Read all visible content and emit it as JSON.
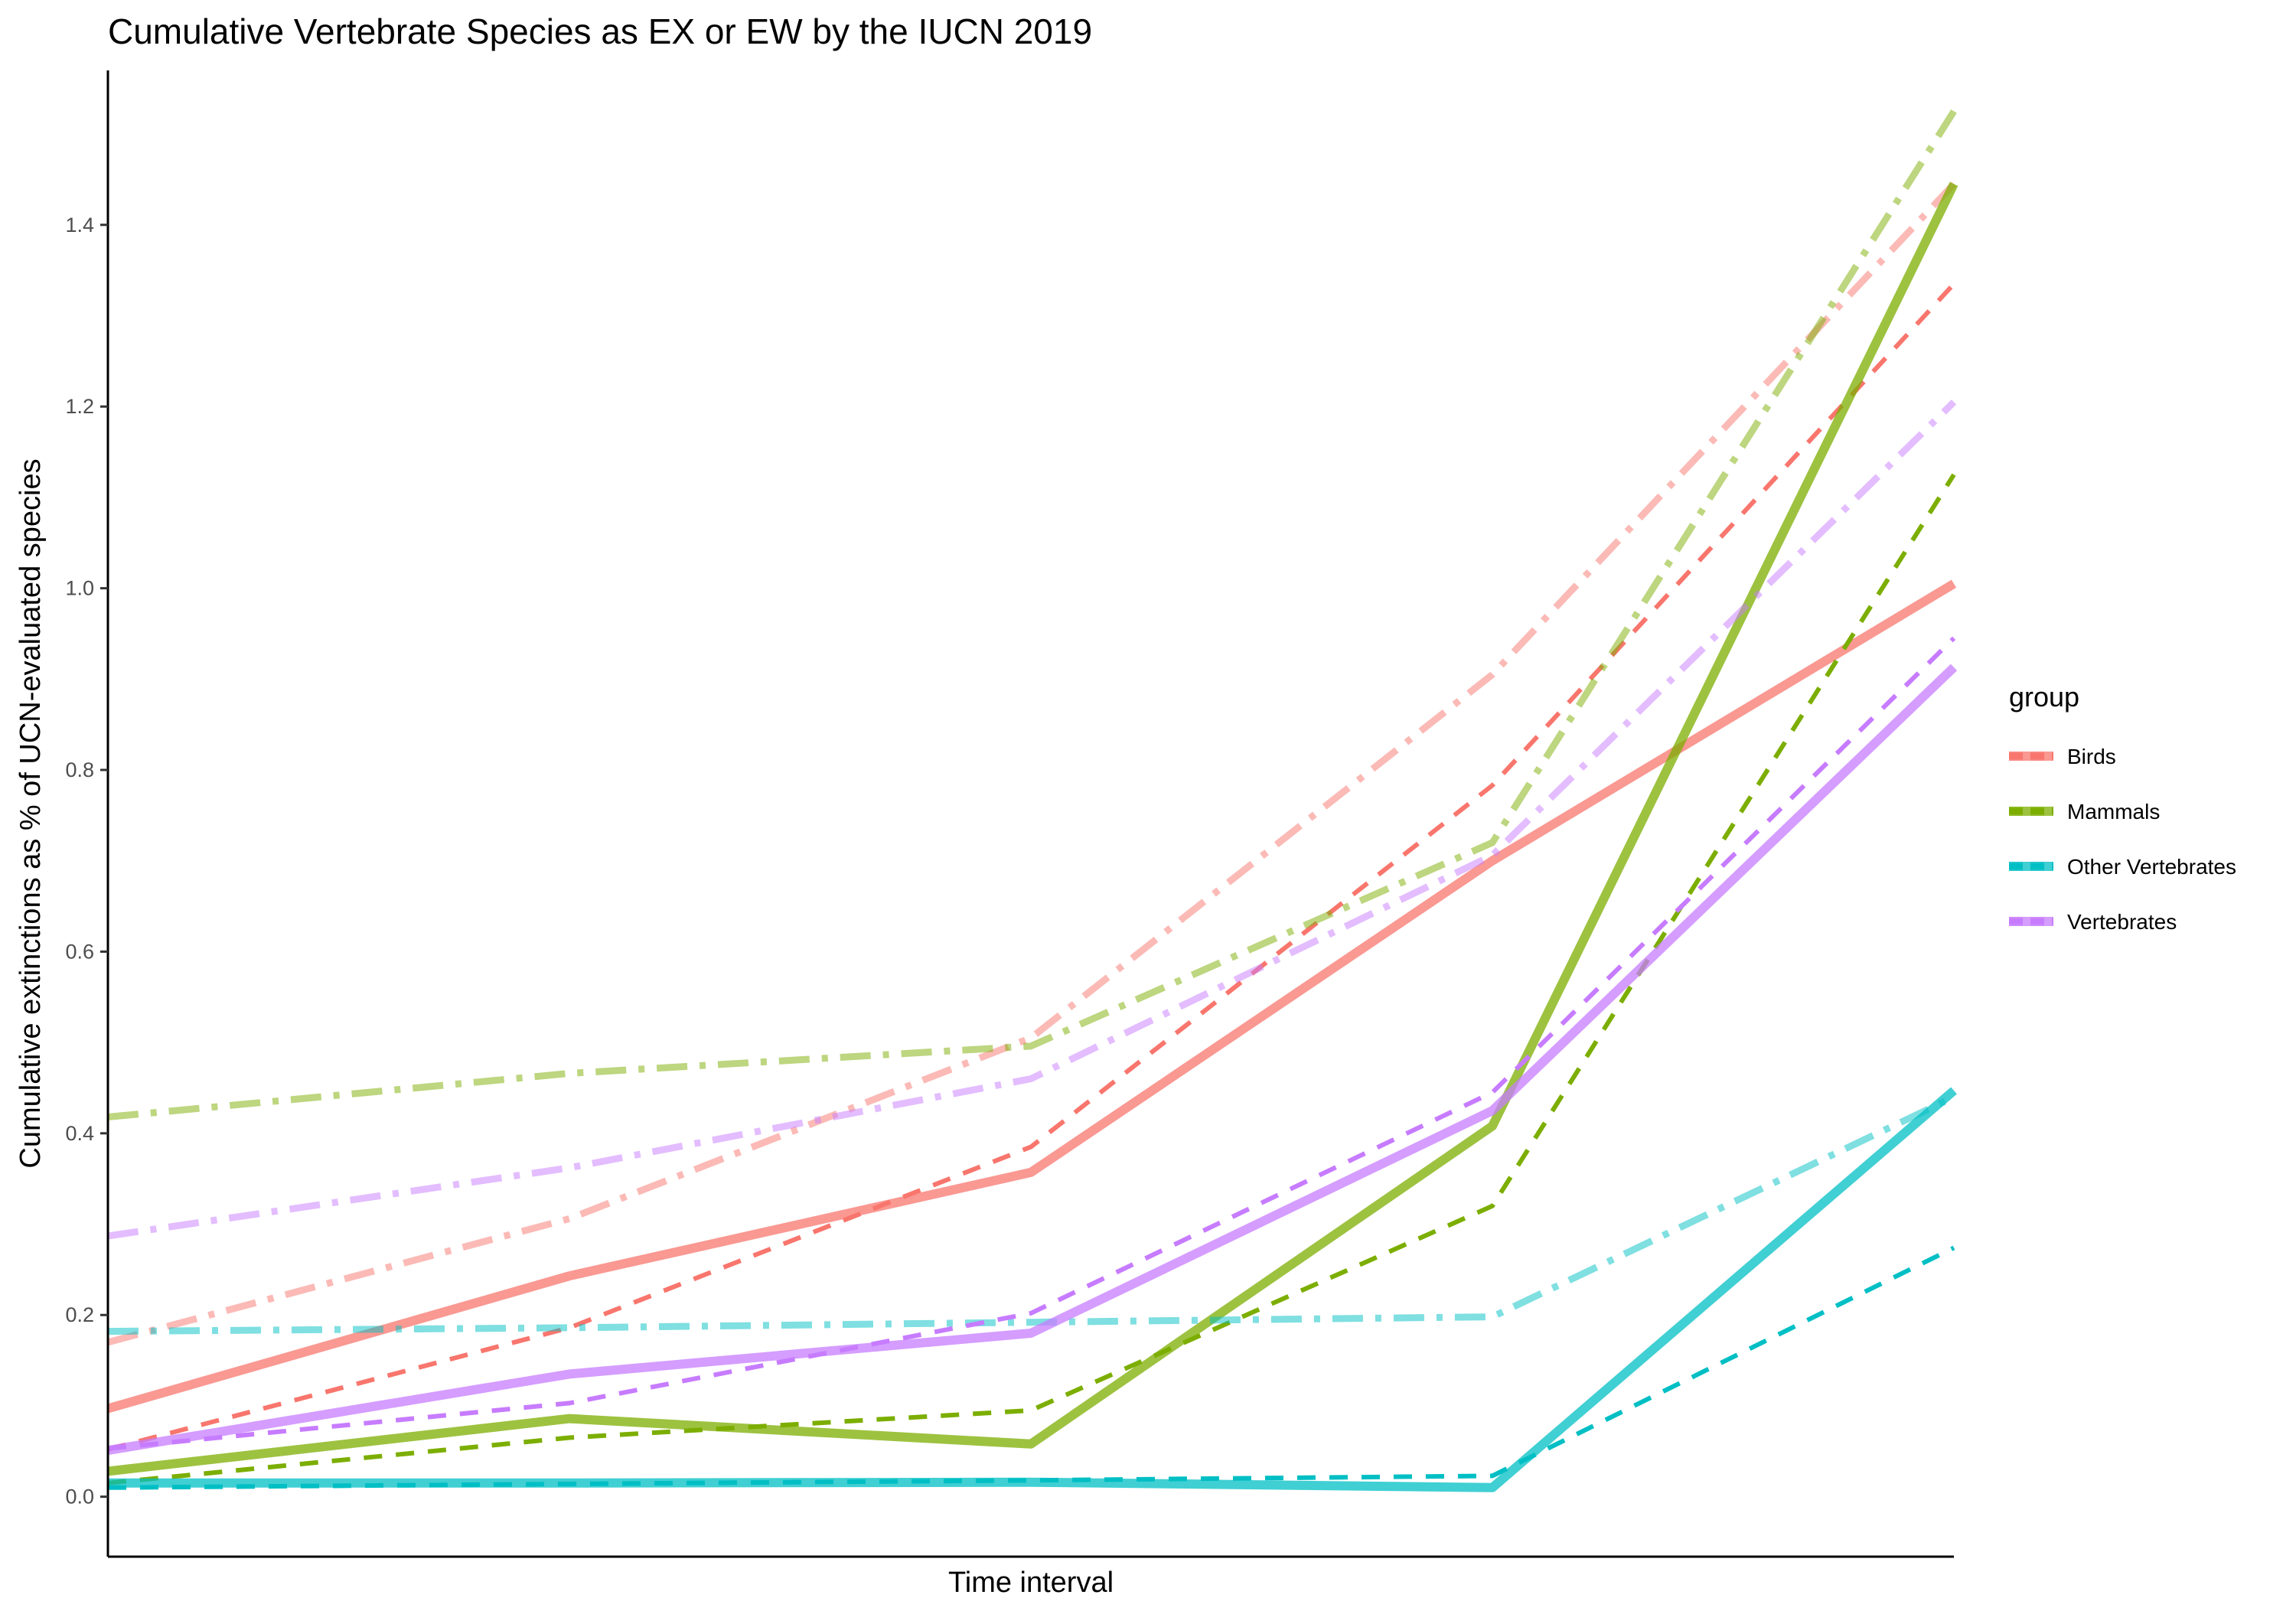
{
  "chart_data": {
    "type": "line",
    "title": "Cumulative Vertebrate Species as EX or EW by the IUCN 2019",
    "xlabel": "Time interval",
    "ylabel": "Cumulative extinctions as % of UCN-evaluated species",
    "x": [
      1,
      2,
      3,
      4,
      5
    ],
    "xlim": [
      1,
      5
    ],
    "ylim": [
      -0.066,
      1.57
    ],
    "yticks": [
      "0.0",
      "0.2",
      "0.4",
      "0.6",
      "0.8",
      "1.0",
      "1.2",
      "1.4"
    ],
    "grid": false,
    "legend": {
      "title": "group",
      "position": "right",
      "entries": [
        {
          "label": "Birds",
          "color": "#F8766D"
        },
        {
          "label": "Mammals",
          "color": "#7CAE00"
        },
        {
          "label": "Other Vertebrates",
          "color": "#00BFC4"
        },
        {
          "label": "Vertebrates",
          "color": "#C77CFF"
        }
      ]
    },
    "series": [
      {
        "group": "Birds",
        "style": "solid",
        "values": [
          0.097,
          0.243,
          0.357,
          0.7,
          1.005
        ]
      },
      {
        "group": "Birds",
        "style": "dashed",
        "values": [
          0.052,
          0.186,
          0.385,
          0.783,
          1.335
        ]
      },
      {
        "group": "Birds",
        "style": "dotdash",
        "values": [
          0.17,
          0.306,
          0.505,
          0.905,
          1.445
        ]
      },
      {
        "group": "Mammals",
        "style": "solid",
        "values": [
          0.028,
          0.086,
          0.058,
          0.408,
          1.445
        ]
      },
      {
        "group": "Mammals",
        "style": "dashed",
        "values": [
          0.015,
          0.065,
          0.095,
          0.32,
          1.125
        ]
      },
      {
        "group": "Mammals",
        "style": "dotdash",
        "values": [
          0.418,
          0.466,
          0.496,
          0.72,
          1.525
        ]
      },
      {
        "group": "Other Vertebrates",
        "style": "solid",
        "values": [
          0.015,
          0.015,
          0.016,
          0.01,
          0.447
        ]
      },
      {
        "group": "Other Vertebrates",
        "style": "dashed",
        "values": [
          0.01,
          0.014,
          0.018,
          0.023,
          0.274
        ]
      },
      {
        "group": "Other Vertebrates",
        "style": "dotdash",
        "values": [
          0.182,
          0.186,
          0.192,
          0.198,
          0.44
        ]
      },
      {
        "group": "Vertebrates",
        "style": "solid",
        "values": [
          0.051,
          0.135,
          0.18,
          0.425,
          0.913
        ]
      },
      {
        "group": "Vertebrates",
        "style": "dashed",
        "values": [
          0.053,
          0.103,
          0.202,
          0.445,
          0.945
        ]
      },
      {
        "group": "Vertebrates",
        "style": "dotdash",
        "values": [
          0.287,
          0.362,
          0.46,
          0.706,
          1.205
        ]
      }
    ]
  }
}
